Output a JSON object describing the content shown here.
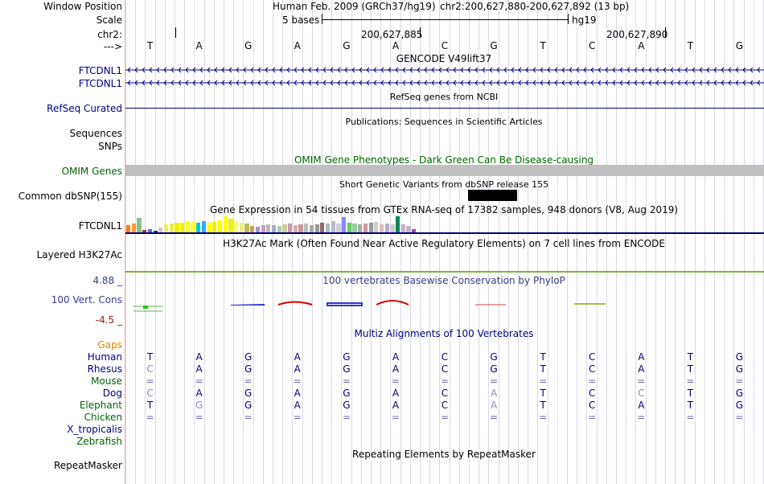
{
  "header": {
    "window_position_label": "Window Position",
    "assembly": "Human Feb. 2009 (GRCh37/hg19)",
    "position": "chr2:200,627,880-200,627,892 (13 bp)",
    "scale_label": "Scale",
    "scale_text": "5 bases",
    "scale_db": "hg19",
    "chrom_label": "chr2:",
    "tick1": "200,627,885",
    "tick2": "200,627,890",
    "strand_label": "--->"
  },
  "sequence": [
    "T",
    "A",
    "G",
    "A",
    "G",
    "A",
    "C",
    "G",
    "T",
    "C",
    "A",
    "T",
    "G"
  ],
  "tracks": {
    "gencode_title": "GENCODE V49lift37",
    "gene1": "FTCDNL1",
    "gene2": "FTCDNL1",
    "refseq_title": "RefSeq genes from NCBI",
    "refseq_label": "RefSeq Curated",
    "pubs_title": "Publications: Sequences in Scientific Articles",
    "sequences_label": "Sequences",
    "snps_label": "SNPs",
    "omim_title": "OMIM Gene Phenotypes - Dark Green Can Be Disease-causing",
    "omim_label": "OMIM Genes",
    "dbsnp_title": "Short Genetic Variants from dbSNP release 155",
    "dbsnp_label": "Common dbSNP(155)",
    "gtex_title": "Gene Expression in 54 tissues from GTEx RNA-seq of 17382 samples, 948 donors (V8, Aug 2019)",
    "gtex_label": "FTCDNL1",
    "h3k27_title": "H3K27Ac Mark (Often Found Near Active Regulatory Elements) on 7 cell lines from ENCODE",
    "h3k27_label": "Layered H3K27Ac",
    "cons_top": "4.88 _",
    "cons_title": "100 vertebrates Basewise Conservation by PhyloP",
    "cons_label": "100 Vert. Cons",
    "cons_bottom": "-4.5 _",
    "multiz_title": "Multiz Alignments of 100 Vertebrates",
    "repeat_title": "Repeating Elements by RepeatMasker",
    "repeat_label": "RepeatMasker"
  },
  "alignment": {
    "gaps_label": "Gaps",
    "species": [
      {
        "name": "Human",
        "bases": [
          "T",
          "A",
          "G",
          "A",
          "G",
          "A",
          "C",
          "G",
          "T",
          "C",
          "A",
          "T",
          "G"
        ]
      },
      {
        "name": "Rhesus",
        "bases": [
          "C",
          "A",
          "G",
          "A",
          "G",
          "A",
          "C",
          "G",
          "T",
          "C",
          "A",
          "T",
          "G"
        ]
      },
      {
        "name": "Mouse",
        "bases": [
          "=",
          "=",
          "=",
          "=",
          "=",
          "=",
          "=",
          "=",
          "=",
          "=",
          "=",
          "=",
          "="
        ]
      },
      {
        "name": "Dog",
        "bases": [
          "C",
          "A",
          "G",
          "A",
          "G",
          "A",
          "C",
          "A",
          "T",
          "C",
          "C",
          "T",
          "G"
        ]
      },
      {
        "name": "Elephant",
        "bases": [
          "T",
          "G",
          "G",
          "A",
          "G",
          "A",
          "C",
          "A",
          "T",
          "C",
          "A",
          "T",
          "G"
        ]
      },
      {
        "name": "Chicken",
        "bases": [
          "=",
          "=",
          "=",
          "=",
          "=",
          "=",
          "=",
          "=",
          "=",
          "=",
          "=",
          "=",
          "="
        ]
      },
      {
        "name": "X_tropicalis",
        "bases": []
      },
      {
        "name": "Zebrafish",
        "bases": []
      }
    ]
  },
  "gtex_bars": [
    {
      "v": 0.45,
      "c": "#ff7f0e"
    },
    {
      "v": 0.55,
      "c": "#ff9933"
    },
    {
      "v": 0.9,
      "c": "#8fbc8f"
    },
    {
      "v": 0.15,
      "c": "#aa3333"
    },
    {
      "v": 0.2,
      "c": "#6666cc"
    },
    {
      "v": 0.12,
      "c": "#333333"
    },
    {
      "v": 0.3,
      "c": "#cccccc"
    },
    {
      "v": 0.5,
      "c": "#eeee66"
    },
    {
      "v": 0.55,
      "c": "#eeee44"
    },
    {
      "v": 0.6,
      "c": "#eeee00"
    },
    {
      "v": 0.62,
      "c": "#eeee00"
    },
    {
      "v": 0.7,
      "c": "#ffff00"
    },
    {
      "v": 0.65,
      "c": "#ffff33"
    },
    {
      "v": 0.6,
      "c": "#00cccc"
    },
    {
      "v": 0.7,
      "c": "#33aaff"
    },
    {
      "v": 0.62,
      "c": "#ffff00"
    },
    {
      "v": 0.65,
      "c": "#eeee00"
    },
    {
      "v": 0.75,
      "c": "#ffff00"
    },
    {
      "v": 1.0,
      "c": "#ffff00"
    },
    {
      "v": 0.85,
      "c": "#eeee22"
    },
    {
      "v": 0.7,
      "c": "#ffff66"
    },
    {
      "v": 0.6,
      "c": "#eeee88"
    },
    {
      "v": 0.55,
      "c": "#bbbb55"
    },
    {
      "v": 0.4,
      "c": "#cc9966"
    },
    {
      "v": 0.35,
      "c": "#9999cc"
    },
    {
      "v": 0.45,
      "c": "#cc99cc"
    },
    {
      "v": 0.5,
      "c": "#bbbbbb"
    },
    {
      "v": 0.45,
      "c": "#aaaacc"
    },
    {
      "v": 0.4,
      "c": "#aaccaa"
    },
    {
      "v": 0.5,
      "c": "#cccc99"
    },
    {
      "v": 0.55,
      "c": "#cc99aa"
    },
    {
      "v": 0.45,
      "c": "#ddaaaa"
    },
    {
      "v": 0.5,
      "c": "#cc9999"
    },
    {
      "v": 0.55,
      "c": "#bbbbbb"
    },
    {
      "v": 0.45,
      "c": "#aaaaaa"
    },
    {
      "v": 0.5,
      "c": "#999999"
    },
    {
      "v": 0.6,
      "c": "#996666"
    },
    {
      "v": 0.55,
      "c": "#aabbcc"
    },
    {
      "v": 0.7,
      "c": "#bbbbcc"
    },
    {
      "v": 0.55,
      "c": "#ccccdd"
    },
    {
      "v": 0.95,
      "c": "#8888ff"
    },
    {
      "v": 0.6,
      "c": "#66cc66"
    },
    {
      "v": 0.55,
      "c": "#99cc99"
    },
    {
      "v": 0.5,
      "c": "#aaaaaa"
    },
    {
      "v": 0.55,
      "c": "#cc9999"
    },
    {
      "v": 0.6,
      "c": "#999999"
    },
    {
      "v": 0.65,
      "c": "#cccccc"
    },
    {
      "v": 0.5,
      "c": "#ddbbbb"
    },
    {
      "v": 0.55,
      "c": "#bbaacc"
    },
    {
      "v": 0.5,
      "c": "#cccccc"
    },
    {
      "v": 1.0,
      "c": "#008855"
    },
    {
      "v": 0.5,
      "c": "#ccaacc"
    },
    {
      "v": 0.4,
      "c": "#bbbbbb"
    },
    {
      "v": 0.2,
      "c": "#aa44aa"
    }
  ],
  "colors": {
    "navy": "#000080",
    "green": "#006400",
    "omim_bar": "#c0c0c0",
    "h3k27_line": "#80b040"
  }
}
